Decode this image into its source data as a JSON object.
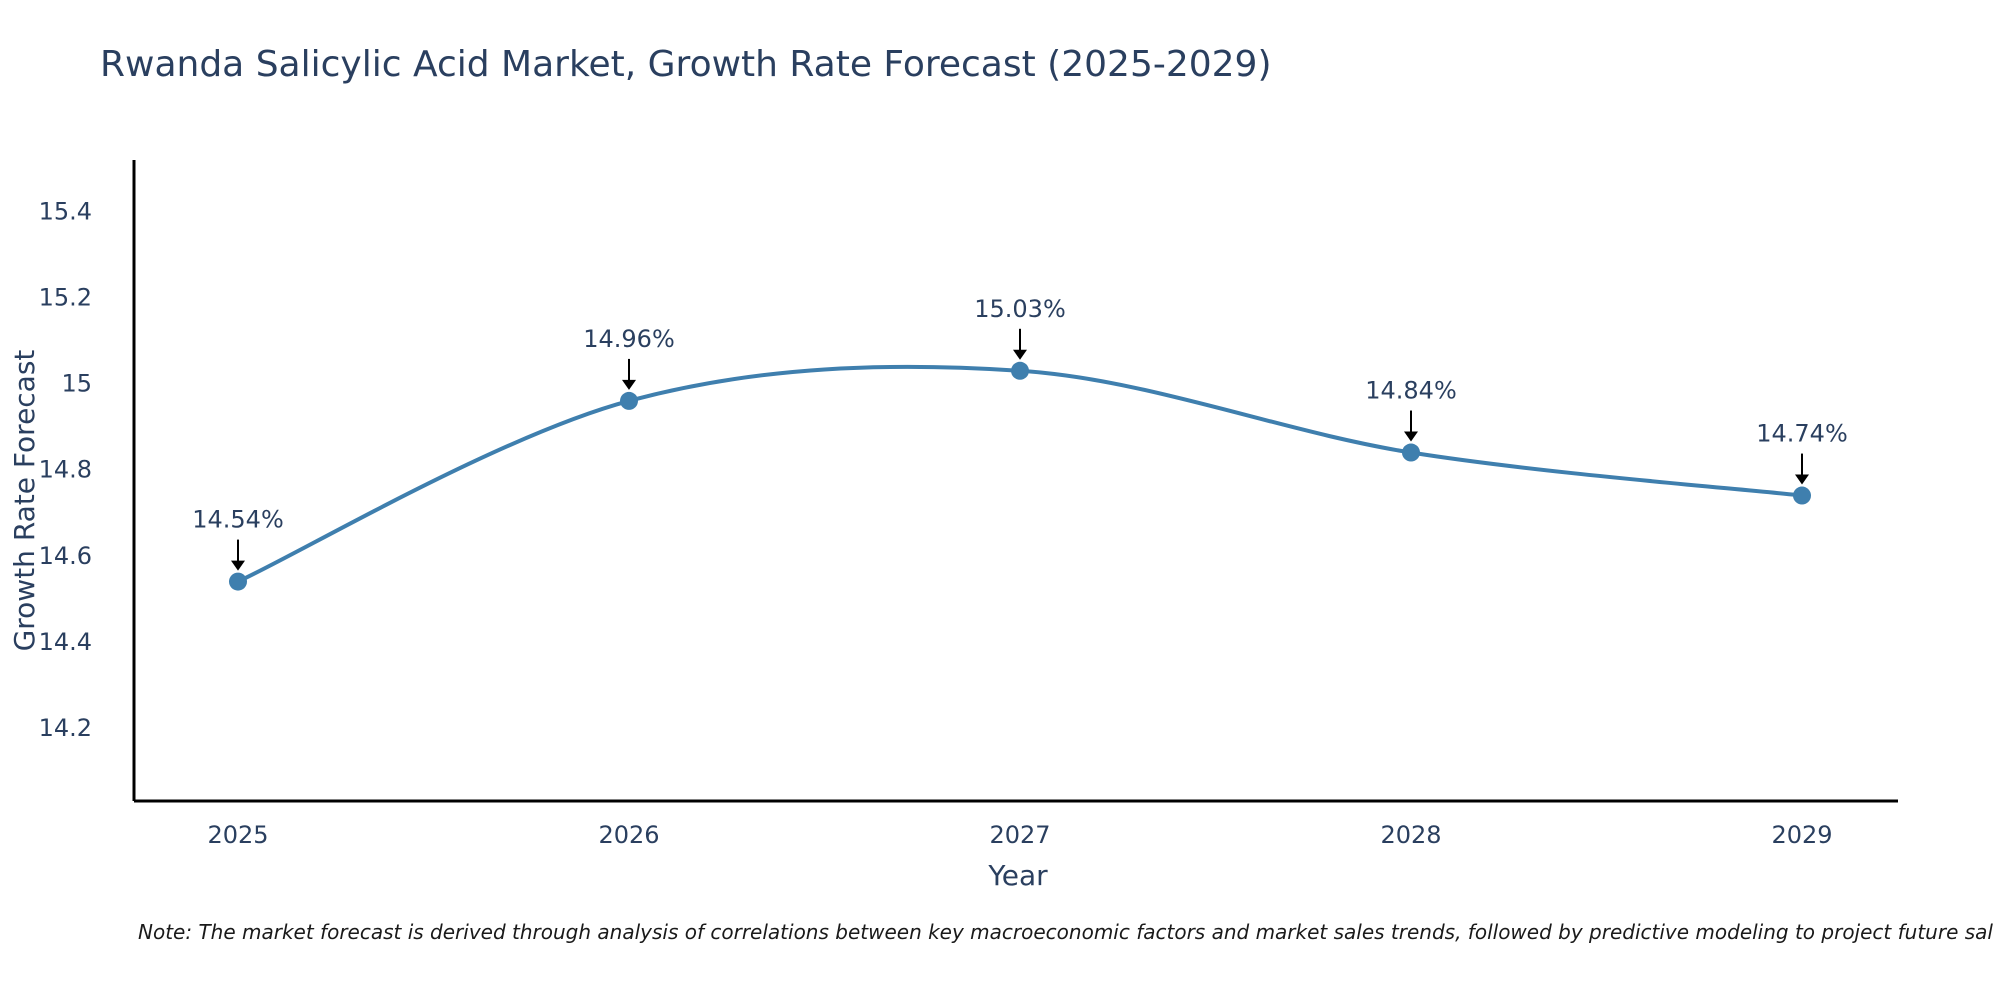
{
  "chart": {
    "title": "Rwanda Salicylic Acid Market, Growth Rate Forecast (2025-2029)",
    "note": "Note: The market forecast is derived through analysis of correlations between key macroeconomic factors and market sales trends, followed by predictive modeling to project future sal"
  },
  "chart_data": {
    "type": "line",
    "title": "Rwanda Salicylic Acid Market, Growth Rate Forecast (2025-2029)",
    "xlabel": "Year",
    "ylabel": "Growth Rate Forecast",
    "categories": [
      "2025",
      "2026",
      "2027",
      "2028",
      "2029"
    ],
    "values": [
      14.54,
      14.96,
      15.03,
      14.84,
      14.74
    ],
    "data_labels": [
      "14.54%",
      "14.96%",
      "15.03%",
      "14.84%",
      "14.74%"
    ],
    "y_ticks": [
      14.2,
      14.4,
      14.6,
      14.8,
      15,
      15.2,
      15.4
    ],
    "y_tick_labels": [
      "14.2",
      "14.4",
      "14.6",
      "14.8",
      "15",
      "15.2",
      "15.4"
    ],
    "ylim": [
      14.03,
      15.52
    ],
    "grid": false,
    "line_shape": "spline",
    "markers": true,
    "colors": {
      "line": "#3f7fae",
      "marker": "#3f7fae",
      "axis": "#000000",
      "arrow": "#000000"
    }
  }
}
